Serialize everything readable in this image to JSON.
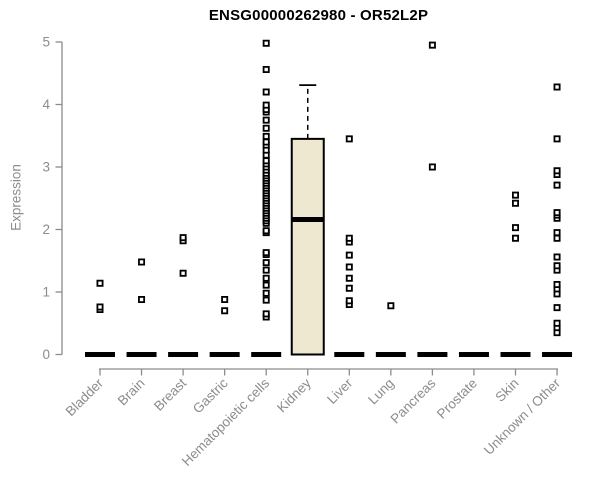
{
  "colors": {
    "box_fill": "#EDE8CF",
    "data_stroke": "#000000",
    "axis": "#8c8c8c",
    "label_gray": "#8c8c8c",
    "title": "#000000",
    "background": "#ffffff"
  },
  "chart_data": {
    "type": "boxplot",
    "title": "ENSG00000262980 - OR52L2P",
    "xlabel": "",
    "ylabel": "Expression",
    "ylim": [
      0,
      5
    ],
    "yticks": [
      0,
      1,
      2,
      3,
      4,
      5
    ],
    "grid": false,
    "legend": "none",
    "categories": [
      "Bladder",
      "Brain",
      "Breast",
      "Gastric",
      "Hematopoietic cells",
      "Kidney",
      "Liver",
      "Lung",
      "Pancreas",
      "Prostate",
      "Skin",
      "Unknown / Other"
    ],
    "series": [
      {
        "name": "Bladder",
        "q1": 0,
        "median": 0,
        "q3": 0,
        "whisker_low": 0,
        "whisker_high": 0,
        "outliers": [
          0.72,
          0.76,
          1.14
        ]
      },
      {
        "name": "Brain",
        "q1": 0,
        "median": 0,
        "q3": 0,
        "whisker_low": 0,
        "whisker_high": 0,
        "outliers": [
          0.88,
          1.48
        ]
      },
      {
        "name": "Breast",
        "q1": 0,
        "median": 0,
        "q3": 0,
        "whisker_low": 0,
        "whisker_high": 0,
        "outliers": [
          1.3,
          1.82,
          1.87
        ]
      },
      {
        "name": "Gastric",
        "q1": 0,
        "median": 0,
        "q3": 0,
        "whisker_low": 0,
        "whisker_high": 0,
        "outliers": [
          0.7,
          0.88
        ]
      },
      {
        "name": "Hematopoietic cells",
        "q1": 0,
        "median": 0,
        "q3": 0,
        "whisker_low": 0,
        "whisker_high": 0,
        "outliers": [
          0.6,
          0.65,
          0.87,
          0.98,
          1.11,
          1.22,
          1.35,
          1.47,
          1.6,
          1.63,
          1.95,
          1.98,
          2.1,
          2.14,
          2.18,
          2.22,
          2.26,
          2.3,
          2.34,
          2.38,
          2.42,
          2.46,
          2.5,
          2.54,
          2.58,
          2.62,
          2.66,
          2.7,
          2.74,
          2.78,
          2.82,
          2.86,
          2.9,
          2.95,
          3.0,
          3.05,
          3.1,
          3.19,
          3.27,
          3.35,
          3.4,
          3.49,
          3.62,
          3.75,
          3.88,
          3.92,
          3.99,
          4.2,
          4.56,
          4.98
        ]
      },
      {
        "name": "Kidney",
        "q1": 0,
        "median": 2.16,
        "q3": 3.45,
        "whisker_low": 0,
        "whisker_high": 4.31,
        "outliers": []
      },
      {
        "name": "Liver",
        "q1": 0,
        "median": 0,
        "q3": 0,
        "whisker_low": 0,
        "whisker_high": 0,
        "outliers": [
          0.8,
          0.86,
          1.06,
          1.22,
          1.4,
          1.59,
          1.8,
          1.86,
          3.45
        ]
      },
      {
        "name": "Lung",
        "q1": 0,
        "median": 0,
        "q3": 0,
        "whisker_low": 0,
        "whisker_high": 0,
        "outliers": [
          0.78
        ]
      },
      {
        "name": "Pancreas",
        "q1": 0,
        "median": 0,
        "q3": 0,
        "whisker_low": 0,
        "whisker_high": 0,
        "outliers": [
          3.0,
          4.95
        ]
      },
      {
        "name": "Prostate",
        "q1": 0,
        "median": 0,
        "q3": 0,
        "whisker_low": 0,
        "whisker_high": 0,
        "outliers": []
      },
      {
        "name": "Skin",
        "q1": 0,
        "median": 0,
        "q3": 0,
        "whisker_low": 0,
        "whisker_high": 0,
        "outliers": [
          1.86,
          2.03,
          2.42,
          2.55
        ]
      },
      {
        "name": "Unknown / Other",
        "q1": 0,
        "median": 0,
        "q3": 0,
        "whisker_low": 0,
        "whisker_high": 0,
        "outliers": [
          0.35,
          0.43,
          0.5,
          0.75,
          0.97,
          1.05,
          1.12,
          1.35,
          1.42,
          1.56,
          1.86,
          1.95,
          2.18,
          2.23,
          2.27,
          2.71,
          2.88,
          2.94,
          3.45,
          4.28
        ]
      }
    ]
  }
}
